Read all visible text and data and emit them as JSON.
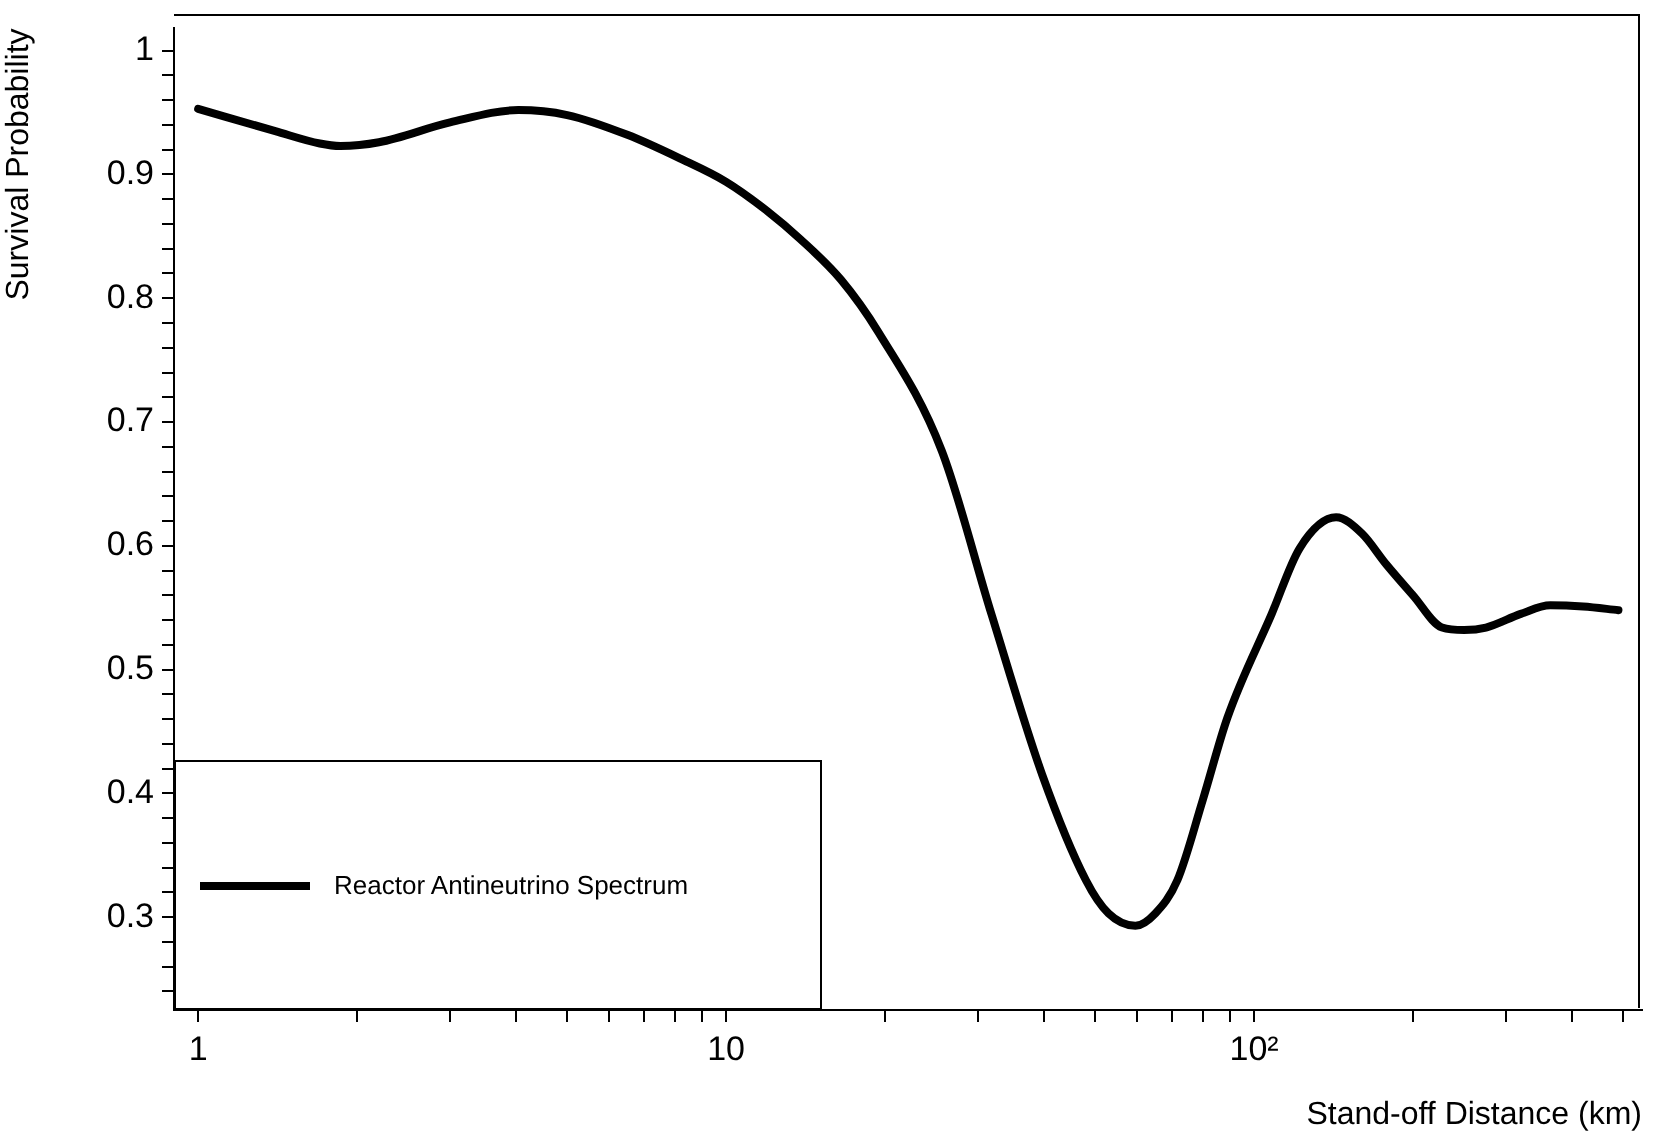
{
  "chart_data": {
    "type": "line",
    "xlabel": "Stand-off Distance (km)",
    "ylabel": "Survival Probability",
    "log": "x",
    "xlim": [
      0.9,
      543
    ],
    "ylim": [
      0.225,
      1.018
    ],
    "xticks": [
      1,
      {
        "value": 2,
        "label": null
      },
      {
        "value": 3,
        "label": null
      },
      {
        "value": 4,
        "label": null
      },
      {
        "value": 5,
        "label": null
      },
      {
        "value": 6,
        "label": null
      },
      {
        "value": 7,
        "label": null
      },
      {
        "value": 8,
        "label": null
      },
      {
        "value": 9,
        "label": null
      },
      10,
      {
        "value": 20,
        "label": null
      },
      {
        "value": 30,
        "label": null
      },
      {
        "value": 40,
        "label": null
      },
      {
        "value": 50,
        "label": null
      },
      {
        "value": 60,
        "label": null
      },
      {
        "value": 70,
        "label": null
      },
      {
        "value": 80,
        "label": null
      },
      {
        "value": 90,
        "label": null
      },
      {
        "value": 100,
        "label": "10²"
      },
      {
        "value": 200,
        "label": null
      },
      {
        "value": 300,
        "label": null
      },
      {
        "value": 400,
        "label": null
      },
      {
        "value": 500,
        "label": null
      }
    ],
    "yticks": [
      {
        "value": 0.24,
        "label": null
      },
      {
        "value": 0.26,
        "label": null
      },
      {
        "value": 0.28,
        "label": null
      },
      0.3,
      {
        "value": 0.32,
        "label": null
      },
      {
        "value": 0.34,
        "label": null
      },
      {
        "value": 0.36,
        "label": null
      },
      {
        "value": 0.38,
        "label": null
      },
      0.4,
      {
        "value": 0.42,
        "label": null
      },
      {
        "value": 0.44,
        "label": null
      },
      {
        "value": 0.46,
        "label": null
      },
      {
        "value": 0.48,
        "label": null
      },
      0.5,
      {
        "value": 0.52,
        "label": null
      },
      {
        "value": 0.54,
        "label": null
      },
      {
        "value": 0.56,
        "label": null
      },
      {
        "value": 0.58,
        "label": null
      },
      0.6,
      {
        "value": 0.62,
        "label": null
      },
      {
        "value": 0.64,
        "label": null
      },
      {
        "value": 0.66,
        "label": null
      },
      {
        "value": 0.68,
        "label": null
      },
      0.7,
      {
        "value": 0.72,
        "label": null
      },
      {
        "value": 0.74,
        "label": null
      },
      {
        "value": 0.76,
        "label": null
      },
      {
        "value": 0.78,
        "label": null
      },
      0.8,
      {
        "value": 0.82,
        "label": null
      },
      {
        "value": 0.84,
        "label": null
      },
      {
        "value": 0.86,
        "label": null
      },
      {
        "value": 0.88,
        "label": null
      },
      0.9,
      {
        "value": 0.92,
        "label": null
      },
      {
        "value": 0.94,
        "label": null
      },
      {
        "value": 0.96,
        "label": null
      },
      {
        "value": 0.98,
        "label": null
      },
      1
    ],
    "grid": false,
    "legend": "bottom left",
    "marker": "none",
    "line_style": "solid",
    "series": [
      {
        "name": "Reactor Antineutrino Spectrum",
        "color": "#000000",
        "x": [
          1,
          1.4,
          1.7,
          1.86,
          2.2,
          3,
          4.04,
          5,
          6.5,
          8.17,
          10,
          12,
          13.8,
          16.5,
          19.4,
          25.6,
          31.8,
          39.7,
          48,
          53,
          59.6,
          65,
          71.6,
          80,
          89,
          108,
          122,
          143,
          160,
          178,
          200,
          227,
          250,
          275,
          320,
          364,
          420,
          490
        ],
        "values": [
          0.953,
          0.935,
          0.925,
          0.923,
          0.926,
          0.942,
          0.952,
          0.948,
          0.932,
          0.913,
          0.894,
          0.87,
          0.848,
          0.815,
          0.773,
          0.677,
          0.545,
          0.415,
          0.33,
          0.303,
          0.293,
          0.303,
          0.33,
          0.395,
          0.461,
          0.545,
          0.598,
          0.623,
          0.61,
          0.585,
          0.56,
          0.534,
          0.532,
          0.534,
          0.545,
          0.552,
          0.551,
          0.548
        ]
      }
    ]
  }
}
